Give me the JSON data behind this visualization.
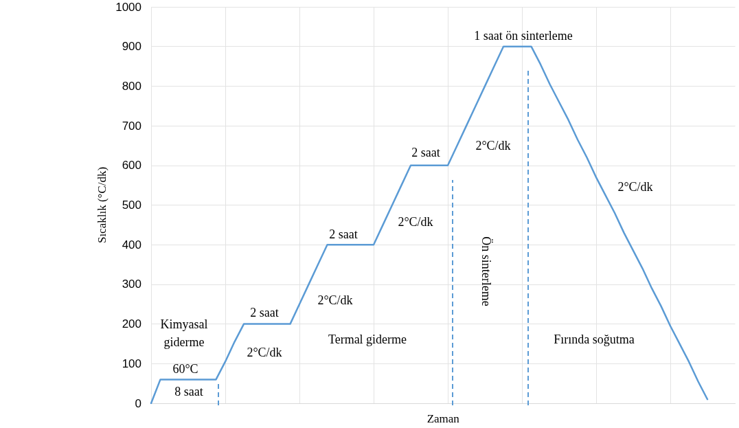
{
  "chart_data": {
    "type": "line",
    "ylabel": "Sıcaklık (°C/dk)",
    "xlabel": "Zaman",
    "categories": [
      null,
      null,
      null,
      null,
      null,
      null,
      null,
      null,
      null,
      null,
      null,
      null,
      null,
      null,
      null,
      null,
      null,
      null,
      null,
      null,
      null,
      null,
      null,
      null,
      null,
      null,
      null,
      null,
      null,
      null,
      null,
      null,
      null,
      null,
      null,
      null,
      null,
      null,
      null,
      null,
      null,
      null,
      null,
      null,
      null,
      null,
      null,
      null,
      null,
      null,
      null,
      null,
      null,
      null,
      null,
      null,
      null,
      null,
      null,
      null,
      null,
      null,
      null,
      null
    ],
    "ylim": [
      0,
      1000
    ],
    "yticks": [
      0,
      100,
      200,
      300,
      400,
      500,
      600,
      700,
      800,
      900,
      1000
    ],
    "grid": true,
    "marker": "none",
    "line_style": "solid",
    "series": [
      {
        "color": "#5b9bd5",
        "values": [
          0,
          60,
          60,
          60,
          60,
          60,
          60,
          60,
          105,
          155,
          200,
          200,
          200,
          200,
          200,
          200,
          250,
          300,
          350,
          400,
          400,
          400,
          400,
          400,
          400,
          450,
          500,
          550,
          600,
          600,
          600,
          600,
          600,
          650,
          700,
          750,
          800,
          850,
          900,
          900,
          900,
          900,
          855,
          805,
          760,
          715,
          665,
          620,
          570,
          525,
          480,
          430,
          385,
          340,
          290,
          245,
          195,
          150,
          105,
          55,
          10,
          null,
          null,
          null
        ]
      }
    ],
    "annotations": [
      "Kimyasal\ngiderme",
      "60°C",
      "8 saat",
      "2 saat",
      "2°C/dk",
      "2°C/dk",
      "Termal giderme",
      "2 saat",
      "2°C/dk",
      "2 saat",
      "2°C/dk",
      "1 saat ön sinterleme",
      "2°C/dk",
      "Fırında soğutma",
      "Ön sinterleme"
    ]
  }
}
